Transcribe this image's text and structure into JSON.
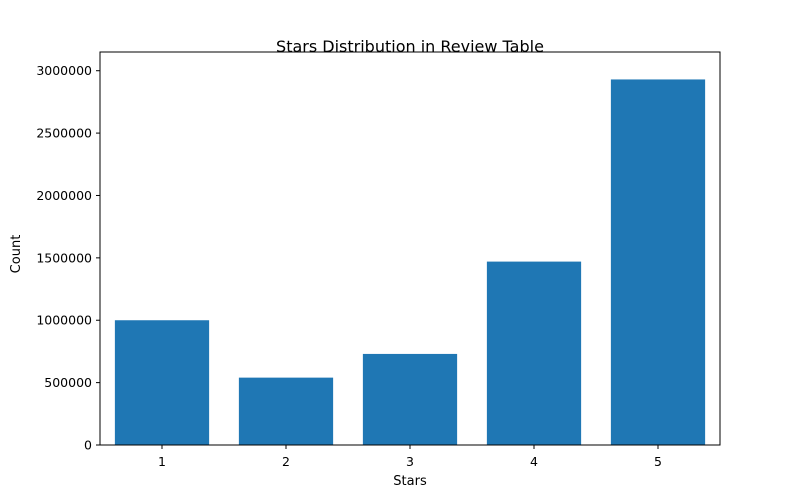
{
  "chart_data": {
    "type": "bar",
    "title": "Stars Distribution in Review Table",
    "xlabel": "Stars",
    "ylabel": "Count",
    "categories": [
      "1",
      "2",
      "3",
      "4",
      "5"
    ],
    "values": [
      1000000,
      540000,
      730000,
      1470000,
      2930000
    ],
    "ylim": [
      0,
      3150000
    ],
    "yticks": [
      0,
      500000,
      1000000,
      1500000,
      2000000,
      2500000,
      3000000
    ],
    "ytick_labels": [
      "0",
      "500000",
      "1000000",
      "1500000",
      "2000000",
      "2500000",
      "3000000"
    ],
    "grid": false,
    "bar_color": "#1f77b4"
  }
}
